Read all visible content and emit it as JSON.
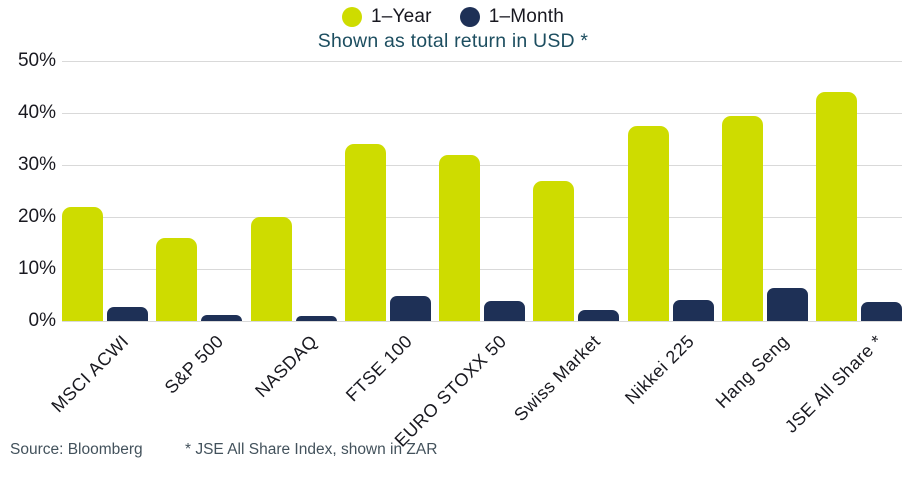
{
  "header": {
    "subtitle": "Shown as total return in USD *"
  },
  "legend": {
    "items": [
      {
        "label": "1–Year",
        "color": "#cedc00"
      },
      {
        "label": "1–Month",
        "color": "#1e3056"
      }
    ]
  },
  "footer": {
    "source": "Source: Bloomberg",
    "footnote": "* JSE All Share Index, shown in ZAR"
  },
  "chart_data": {
    "type": "bar",
    "title": "",
    "subtitle": "Shown as total return in USD *",
    "categories": [
      "MSCI ACWI",
      "S&P 500",
      "NASDAQ",
      "FTSE 100",
      "EURO STOXX 50",
      "Swiss Market",
      "Nikkei 225",
      "Hang Seng",
      "JSE All Share *"
    ],
    "series": [
      {
        "name": "1–Year",
        "color": "#cedc00",
        "values": [
          22,
          16,
          20,
          34,
          32,
          27,
          37.5,
          39.5,
          44
        ]
      },
      {
        "name": "1–Month",
        "color": "#1e3056",
        "values": [
          2.7,
          1.2,
          0.9,
          4.9,
          3.9,
          2.1,
          4,
          6.4,
          3.6
        ]
      }
    ],
    "unit": "%",
    "ylim": [
      0,
      50
    ],
    "yticks": [
      0,
      10,
      20,
      30,
      40,
      50
    ],
    "ytick_labels": [
      "0%",
      "10%",
      "20%",
      "30%",
      "40%",
      "50%"
    ],
    "grid": true,
    "legend_position": "top-center",
    "colors": {
      "gridline": "#d9d9d9",
      "axis_text": "#191920",
      "subtitle_text": "#1d4e60",
      "footer_text": "#43525c"
    }
  }
}
